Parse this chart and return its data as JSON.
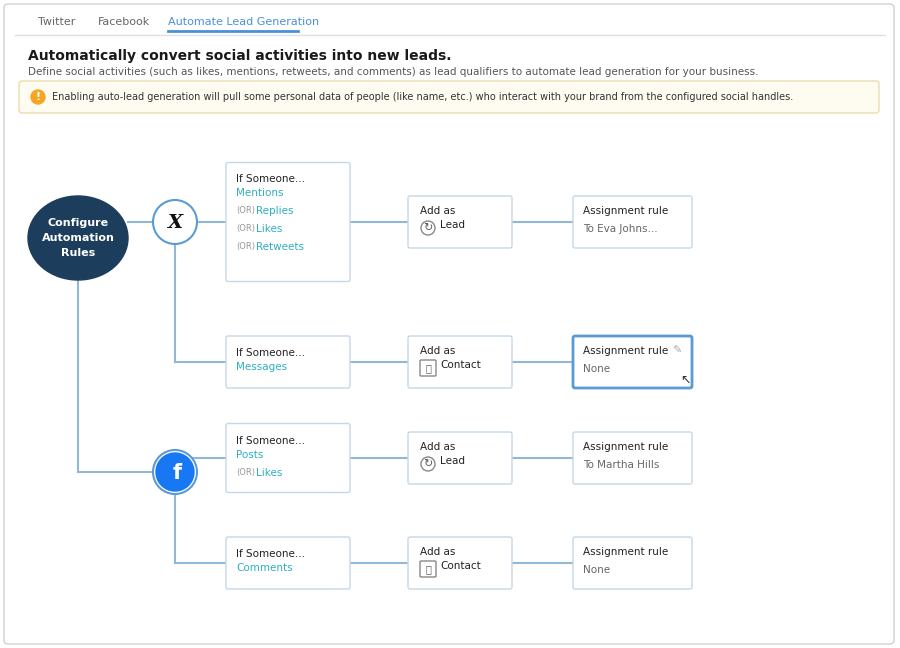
{
  "background_color": "#ffffff",
  "outer_border_color": "#d0d0d0",
  "tab_labels": [
    "Twitter",
    "Facebook",
    "Automate Lead Generation"
  ],
  "active_tab": "Automate Lead Generation",
  "active_tab_color": "#4a90d9",
  "inactive_tab_color": "#666666",
  "title": "Automatically convert social activities into new leads.",
  "subtitle": "Define social activities (such as likes, mentions, retweets, and comments) as lead qualifiers to automate lead generation for your business.",
  "warning_bg": "#fefbf0",
  "warning_border": "#e8ddb0",
  "warning_icon_color": "#f5a623",
  "warning_text": "Enabling auto-lead generation will pull some personal data of people (like name, etc.) who interact with your brand from the configured social handles.",
  "configure_circle_color": "#1c3d5c",
  "configure_text": "Configure\nAutomation\nRules",
  "twitter_border_color": "#5b9bd5",
  "facebook_fill_color": "#1877f2",
  "facebook_border_color": "#5b9bd5",
  "box_border_color": "#c5d8e8",
  "box_border_active": "#5b9bd5",
  "link_color": "#2eafc0",
  "line_color": "#92b8d4",
  "text_dark": "#222222",
  "text_gray": "#666666",
  "rows": [
    {
      "section": "twitter",
      "if_label": "If Someone...",
      "activities": [
        "Mentions",
        "(OR) Replies",
        "(OR) Likes",
        "(OR) Retweets"
      ],
      "add_as_label": "Add as",
      "add_as_type": "Lead",
      "add_as_icon": "lead",
      "assignment_label": "Assignment rule",
      "assignment_value": "To Eva Johns...",
      "highlighted": false
    },
    {
      "section": "twitter",
      "if_label": "If Someone...",
      "activities": [
        "Messages"
      ],
      "add_as_label": "Add as",
      "add_as_type": "Contact",
      "add_as_icon": "contact",
      "assignment_label": "Assignment rule",
      "assignment_value": "None",
      "highlighted": true
    },
    {
      "section": "facebook",
      "if_label": "If Someone...",
      "activities": [
        "Posts",
        "(OR) Likes"
      ],
      "add_as_label": "Add as",
      "add_as_type": "Lead",
      "add_as_icon": "lead",
      "assignment_label": "Assignment rule",
      "assignment_value": "To Martha Hills",
      "highlighted": false
    },
    {
      "section": "facebook",
      "if_label": "If Someone...",
      "activities": [
        "Comments"
      ],
      "add_as_label": "Add as",
      "add_as_type": "Contact",
      "add_as_icon": "contact",
      "assignment_label": "Assignment rule",
      "assignment_value": "None",
      "highlighted": false
    }
  ]
}
